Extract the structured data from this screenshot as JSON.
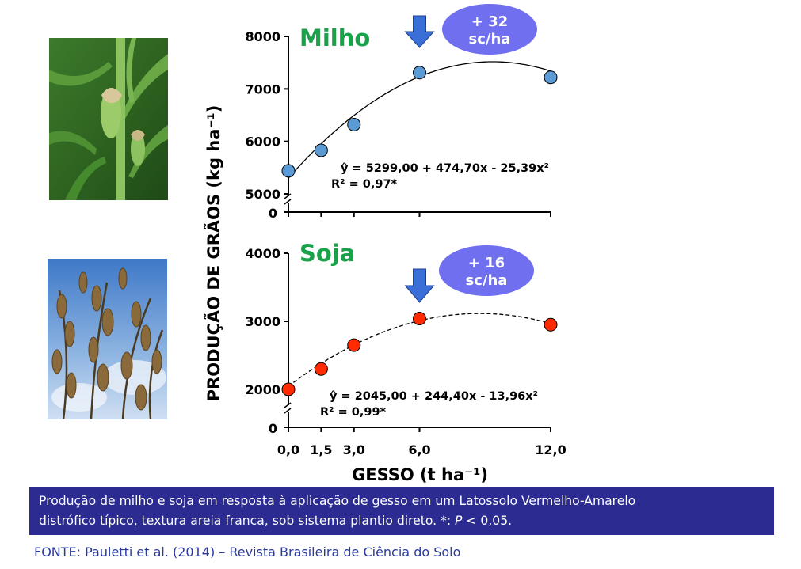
{
  "y_axis_title": "PRODUÇÃO DE GRÃOS (kg ha⁻¹)",
  "chart_data": [
    {
      "type": "scatter",
      "title": "Milho",
      "xlabel": "GESSO (t ha⁻¹)",
      "ylabel": "PRODUÇÃO DE GRÃOS (kg ha⁻¹)",
      "x": [
        0,
        1.5,
        3,
        6,
        12
      ],
      "y": [
        5440,
        5830,
        6320,
        7310,
        7220
      ],
      "yticks": [
        "5000",
        "6000",
        "7000",
        "8000"
      ],
      "baseline_label": "0",
      "ylim": [
        5000,
        8000
      ],
      "axis_break": true,
      "fit": {
        "a": 5299.0,
        "b": 474.7,
        "c": -25.39,
        "style": "solid"
      },
      "equation": "ŷ = 5299,00 + 474,70x - 25,39x²",
      "r2": "R² = 0,97*",
      "annotation": {
        "line1": "+ 32",
        "line2": "sc/ha",
        "arrow_at_x": 6
      },
      "marker_color": "#5b9bd5"
    },
    {
      "type": "scatter",
      "title": "Soja",
      "xlabel": "GESSO (t ha⁻¹)",
      "ylabel": "PRODUÇÃO DE GRÃOS (kg ha⁻¹)",
      "x": [
        0,
        1.5,
        3,
        6,
        12
      ],
      "y": [
        2000,
        2300,
        2650,
        3040,
        2950
      ],
      "yticks": [
        "2000",
        "3000",
        "4000"
      ],
      "baseline_label": "0",
      "ylim": [
        2000,
        4000
      ],
      "axis_break": true,
      "fit": {
        "a": 2045.0,
        "b": 244.4,
        "c": -13.96,
        "style": "dashed"
      },
      "equation": "ŷ = 2045,00 + 244,40x - 13,96x²",
      "r2": "R² = 0,99*",
      "annotation": {
        "line1": "+ 16",
        "line2": "sc/ha",
        "arrow_at_x": 6
      },
      "marker_color": "#ff2a00"
    }
  ],
  "x_tick_labels": [
    "0,0",
    "1,5",
    "3,0",
    "6,0",
    "12,0"
  ],
  "x_axis_title": "GESSO (t ha⁻¹)",
  "caption": {
    "line1": "Produção de milho e soja em resposta à aplicação de gesso em um Latossolo Vermelho-Amarelo",
    "line2_prefix": "distrófico típico, textura areia franca, sob sistema plantio direto. *: ",
    "line2_italic": "P",
    "line2_suffix": " < 0,05."
  },
  "source": "FONTE: Pauletti et al. (2014) – Revista Brasileira de Ciência do Solo",
  "colors": {
    "title_green": "#1aa24a",
    "bubble": "#6f6ff0",
    "arrow": "#3a6fd8",
    "caption_bg": "#2b2b92",
    "source_text": "#2b3aa0"
  }
}
